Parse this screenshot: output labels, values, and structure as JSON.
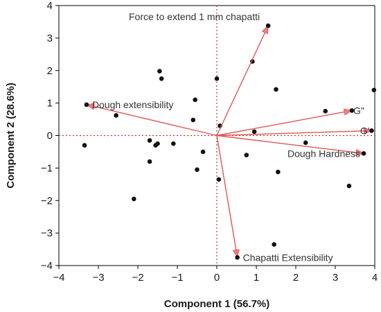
{
  "chart_data": {
    "type": "scatter",
    "xlabel": "Component 1 (56.7%)",
    "ylabel": "Component 2 (28.6%)",
    "xlim": [
      -4,
      4
    ],
    "ylim": [
      -4,
      4
    ],
    "x_ticks": [
      "−4",
      "−3",
      "−2",
      "−1",
      "0",
      "1",
      "2",
      "3",
      "4"
    ],
    "y_ticks": [
      "4",
      "3",
      "2",
      "1",
      "0",
      "−1",
      "−2",
      "−3",
      "−4"
    ],
    "grid": false,
    "colors": {
      "point": "#111111",
      "vector": "#e05555",
      "vector_tip": "#e88080",
      "zero_line": "#b33a2a"
    },
    "scores": [
      {
        "x": -3.35,
        "y": -0.3
      },
      {
        "x": -2.55,
        "y": 0.62
      },
      {
        "x": -2.1,
        "y": -1.95
      },
      {
        "x": -1.7,
        "y": -0.15
      },
      {
        "x": -1.7,
        "y": -0.8
      },
      {
        "x": -1.55,
        "y": -0.3
      },
      {
        "x": -1.5,
        "y": -0.25
      },
      {
        "x": -1.45,
        "y": 1.98
      },
      {
        "x": -1.4,
        "y": 1.75
      },
      {
        "x": -1.1,
        "y": -0.25
      },
      {
        "x": -0.6,
        "y": 0.48
      },
      {
        "x": -0.55,
        "y": 1.1
      },
      {
        "x": -0.5,
        "y": -1.05
      },
      {
        "x": -0.35,
        "y": -0.5
      },
      {
        "x": 0.0,
        "y": 1.75
      },
      {
        "x": 0.05,
        "y": -1.35
      },
      {
        "x": 0.08,
        "y": 0.3
      },
      {
        "x": 0.75,
        "y": -0.6
      },
      {
        "x": 0.9,
        "y": 2.28
      },
      {
        "x": 0.95,
        "y": 0.12
      },
      {
        "x": 1.5,
        "y": 1.42
      },
      {
        "x": 1.55,
        "y": -1.12
      },
      {
        "x": 2.25,
        "y": -0.22
      },
      {
        "x": 2.75,
        "y": 0.75
      },
      {
        "x": 3.35,
        "y": -1.55
      },
      {
        "x": 3.98,
        "y": 1.4
      },
      {
        "x": 1.45,
        "y": -3.35
      }
    ],
    "loadings": [
      {
        "label": "Force to extend 1 mm chapatti",
        "x": 1.3,
        "y": 3.38
      },
      {
        "label": "Dough extensibility",
        "x": -3.3,
        "y": 0.95
      },
      {
        "label": "G\"",
        "x": 3.42,
        "y": 0.77
      },
      {
        "label": "G'",
        "x": 3.92,
        "y": 0.15
      },
      {
        "label": "Dough Hardness",
        "x": 3.72,
        "y": -0.55
      },
      {
        "label": "Chapatti Extensibility",
        "x": 0.52,
        "y": -3.75
      }
    ]
  }
}
